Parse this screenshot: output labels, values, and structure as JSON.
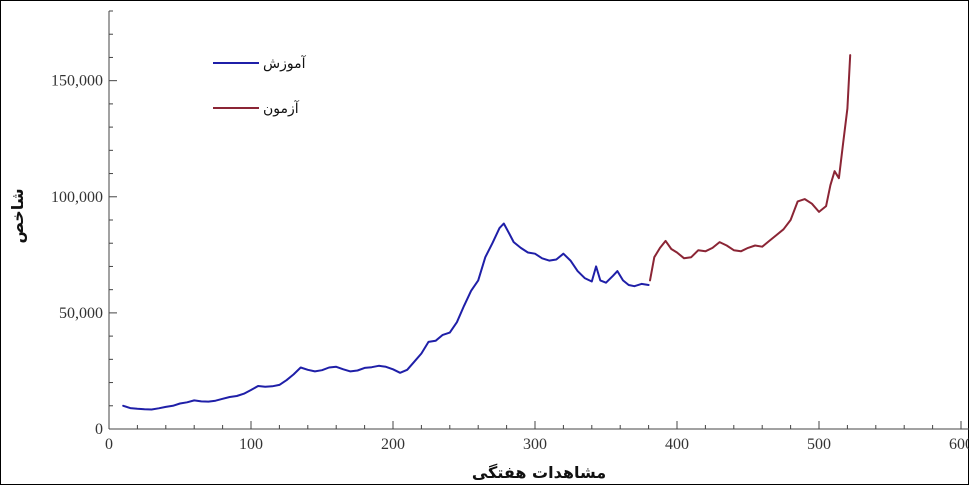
{
  "chart_data": {
    "type": "line",
    "title": "",
    "xlabel": "مشاهدات هفتگی",
    "ylabel": "شاخص",
    "xlim": [
      0,
      600
    ],
    "ylim": [
      0,
      180000
    ],
    "x_ticks": [
      0,
      100,
      200,
      300,
      400,
      500,
      600
    ],
    "x_tick_labels": [
      "0",
      "100",
      "200",
      "300",
      "400",
      "500",
      "600"
    ],
    "y_ticks": [
      0,
      50000,
      100000,
      150000
    ],
    "y_tick_labels": [
      "0",
      "50,000",
      "100,000",
      "150,000"
    ],
    "grid": false,
    "legend_position": "top-left",
    "series": [
      {
        "name": "آموزش",
        "color": "#1f1fa8",
        "points": [
          [
            10,
            10000
          ],
          [
            15,
            9000
          ],
          [
            20,
            8700
          ],
          [
            25,
            8500
          ],
          [
            30,
            8400
          ],
          [
            35,
            8900
          ],
          [
            40,
            9500
          ],
          [
            45,
            10000
          ],
          [
            50,
            11000
          ],
          [
            55,
            11500
          ],
          [
            60,
            12300
          ],
          [
            65,
            11900
          ],
          [
            70,
            11800
          ],
          [
            75,
            12200
          ],
          [
            80,
            13000
          ],
          [
            85,
            13800
          ],
          [
            90,
            14200
          ],
          [
            95,
            15200
          ],
          [
            100,
            16800
          ],
          [
            105,
            18500
          ],
          [
            110,
            18200
          ],
          [
            115,
            18400
          ],
          [
            120,
            19000
          ],
          [
            125,
            21000
          ],
          [
            130,
            23500
          ],
          [
            135,
            26500
          ],
          [
            140,
            25500
          ],
          [
            145,
            24800
          ],
          [
            150,
            25300
          ],
          [
            155,
            26500
          ],
          [
            160,
            26800
          ],
          [
            165,
            25700
          ],
          [
            170,
            24800
          ],
          [
            175,
            25200
          ],
          [
            180,
            26300
          ],
          [
            185,
            26600
          ],
          [
            190,
            27200
          ],
          [
            195,
            26800
          ],
          [
            200,
            25700
          ],
          [
            205,
            24200
          ],
          [
            210,
            25500
          ],
          [
            215,
            29000
          ],
          [
            220,
            32500
          ],
          [
            225,
            37500
          ],
          [
            230,
            38000
          ],
          [
            235,
            40500
          ],
          [
            240,
            41500
          ],
          [
            245,
            46000
          ],
          [
            250,
            53000
          ],
          [
            255,
            59500
          ],
          [
            260,
            64000
          ],
          [
            265,
            74000
          ],
          [
            270,
            80000
          ],
          [
            275,
            86500
          ],
          [
            278,
            88500
          ],
          [
            282,
            84000
          ],
          [
            285,
            80500
          ],
          [
            290,
            78000
          ],
          [
            295,
            76000
          ],
          [
            300,
            75500
          ],
          [
            305,
            73500
          ],
          [
            310,
            72500
          ],
          [
            315,
            73000
          ],
          [
            320,
            75500
          ],
          [
            325,
            72500
          ],
          [
            330,
            68000
          ],
          [
            335,
            65000
          ],
          [
            340,
            63500
          ],
          [
            343,
            70000
          ],
          [
            346,
            64000
          ],
          [
            350,
            63000
          ],
          [
            355,
            66000
          ],
          [
            358,
            68000
          ],
          [
            362,
            64000
          ],
          [
            366,
            62000
          ],
          [
            370,
            61500
          ],
          [
            375,
            62500
          ],
          [
            380,
            62000
          ]
        ]
      },
      {
        "name": "آزمون",
        "color": "#8b2535",
        "points": [
          [
            381,
            64000
          ],
          [
            384,
            74000
          ],
          [
            388,
            78000
          ],
          [
            392,
            81000
          ],
          [
            396,
            77500
          ],
          [
            400,
            76000
          ],
          [
            405,
            73500
          ],
          [
            410,
            74000
          ],
          [
            415,
            77000
          ],
          [
            420,
            76500
          ],
          [
            425,
            78000
          ],
          [
            430,
            80500
          ],
          [
            435,
            79000
          ],
          [
            440,
            77000
          ],
          [
            445,
            76500
          ],
          [
            450,
            78000
          ],
          [
            455,
            79000
          ],
          [
            460,
            78500
          ],
          [
            465,
            81000
          ],
          [
            470,
            83500
          ],
          [
            475,
            86000
          ],
          [
            480,
            90000
          ],
          [
            485,
            98000
          ],
          [
            490,
            99000
          ],
          [
            495,
            97000
          ],
          [
            500,
            93500
          ],
          [
            505,
            96000
          ],
          [
            508,
            105000
          ],
          [
            511,
            111000
          ],
          [
            514,
            108000
          ],
          [
            517,
            123000
          ],
          [
            520,
            138000
          ],
          [
            522,
            161000
          ]
        ]
      }
    ]
  }
}
